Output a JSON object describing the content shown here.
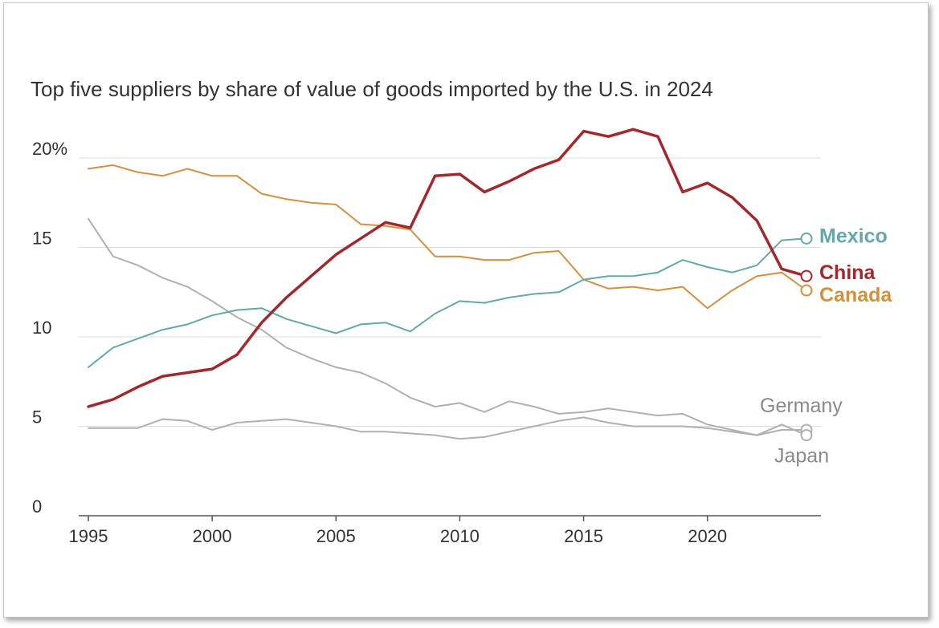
{
  "chart_data": {
    "type": "line",
    "title": "Top five suppliers by share of value of goods imported by the U.S. in 2024",
    "xlabel": "",
    "ylabel": "",
    "x": [
      1995,
      1996,
      1997,
      1998,
      1999,
      2000,
      2001,
      2002,
      2003,
      2004,
      2005,
      2006,
      2007,
      2008,
      2009,
      2010,
      2011,
      2012,
      2013,
      2014,
      2015,
      2016,
      2017,
      2018,
      2019,
      2020,
      2021,
      2022,
      2023,
      2024
    ],
    "xlim": [
      1995,
      2024
    ],
    "ylim": [
      0,
      22
    ],
    "x_ticks": [
      1995,
      2000,
      2005,
      2010,
      2015,
      2020
    ],
    "x_tick_labels": [
      "1995",
      "2000",
      "2005",
      "2010",
      "2015",
      "2020"
    ],
    "y_ticks": [
      0,
      5,
      10,
      15,
      20
    ],
    "y_tick_labels": [
      "0",
      "5",
      "10",
      "15",
      "20%"
    ],
    "grid": true,
    "series": [
      {
        "name": "Germany",
        "color": "#b0b0b0",
        "width": 2,
        "labelStyle": "light",
        "values": [
          4.9,
          4.9,
          4.9,
          5.4,
          5.3,
          4.8,
          5.2,
          5.3,
          5.4,
          5.2,
          5.0,
          4.7,
          4.7,
          4.6,
          4.5,
          4.3,
          4.4,
          4.7,
          5.0,
          5.3,
          5.5,
          5.2,
          5.0,
          5.0,
          5.0,
          4.9,
          4.7,
          4.5,
          4.8,
          4.8
        ]
      },
      {
        "name": "Japan",
        "color": "#b0b0b0",
        "width": 2,
        "labelStyle": "light",
        "values": [
          16.6,
          14.5,
          14.0,
          13.3,
          12.8,
          12.0,
          11.1,
          10.4,
          9.4,
          8.8,
          8.3,
          8.0,
          7.4,
          6.6,
          6.1,
          6.3,
          5.8,
          6.4,
          6.1,
          5.7,
          5.8,
          6.0,
          5.8,
          5.6,
          5.7,
          5.1,
          4.8,
          4.5,
          5.1,
          4.5
        ]
      },
      {
        "name": "Canada",
        "color": "#d4903c",
        "width": 2,
        "labelStyle": "bold",
        "values": [
          19.4,
          19.6,
          19.2,
          19.0,
          19.4,
          19.0,
          19.0,
          18.0,
          17.7,
          17.5,
          17.4,
          16.3,
          16.2,
          16.0,
          14.5,
          14.5,
          14.3,
          14.3,
          14.7,
          14.8,
          13.2,
          12.7,
          12.8,
          12.6,
          12.8,
          11.6,
          12.6,
          13.4,
          13.6,
          12.6
        ]
      },
      {
        "name": "Mexico",
        "color": "#64a8ab",
        "width": 2,
        "labelStyle": "bold",
        "values": [
          8.3,
          9.4,
          9.9,
          10.4,
          10.7,
          11.2,
          11.5,
          11.6,
          11.0,
          10.6,
          10.2,
          10.7,
          10.8,
          10.3,
          11.3,
          12.0,
          11.9,
          12.2,
          12.4,
          12.5,
          13.2,
          13.4,
          13.4,
          13.6,
          14.3,
          13.9,
          13.6,
          14.0,
          15.4,
          15.5
        ]
      },
      {
        "name": "China",
        "color": "#a3282b",
        "width": 3.5,
        "labelStyle": "bold",
        "values": [
          6.1,
          6.5,
          7.2,
          7.8,
          8.0,
          8.2,
          9.0,
          10.8,
          12.2,
          13.4,
          14.6,
          15.5,
          16.4,
          16.1,
          19.0,
          19.1,
          18.1,
          18.7,
          19.4,
          19.9,
          21.5,
          21.2,
          21.6,
          21.2,
          18.1,
          18.6,
          17.8,
          16.5,
          13.8,
          13.4
        ]
      }
    ]
  }
}
